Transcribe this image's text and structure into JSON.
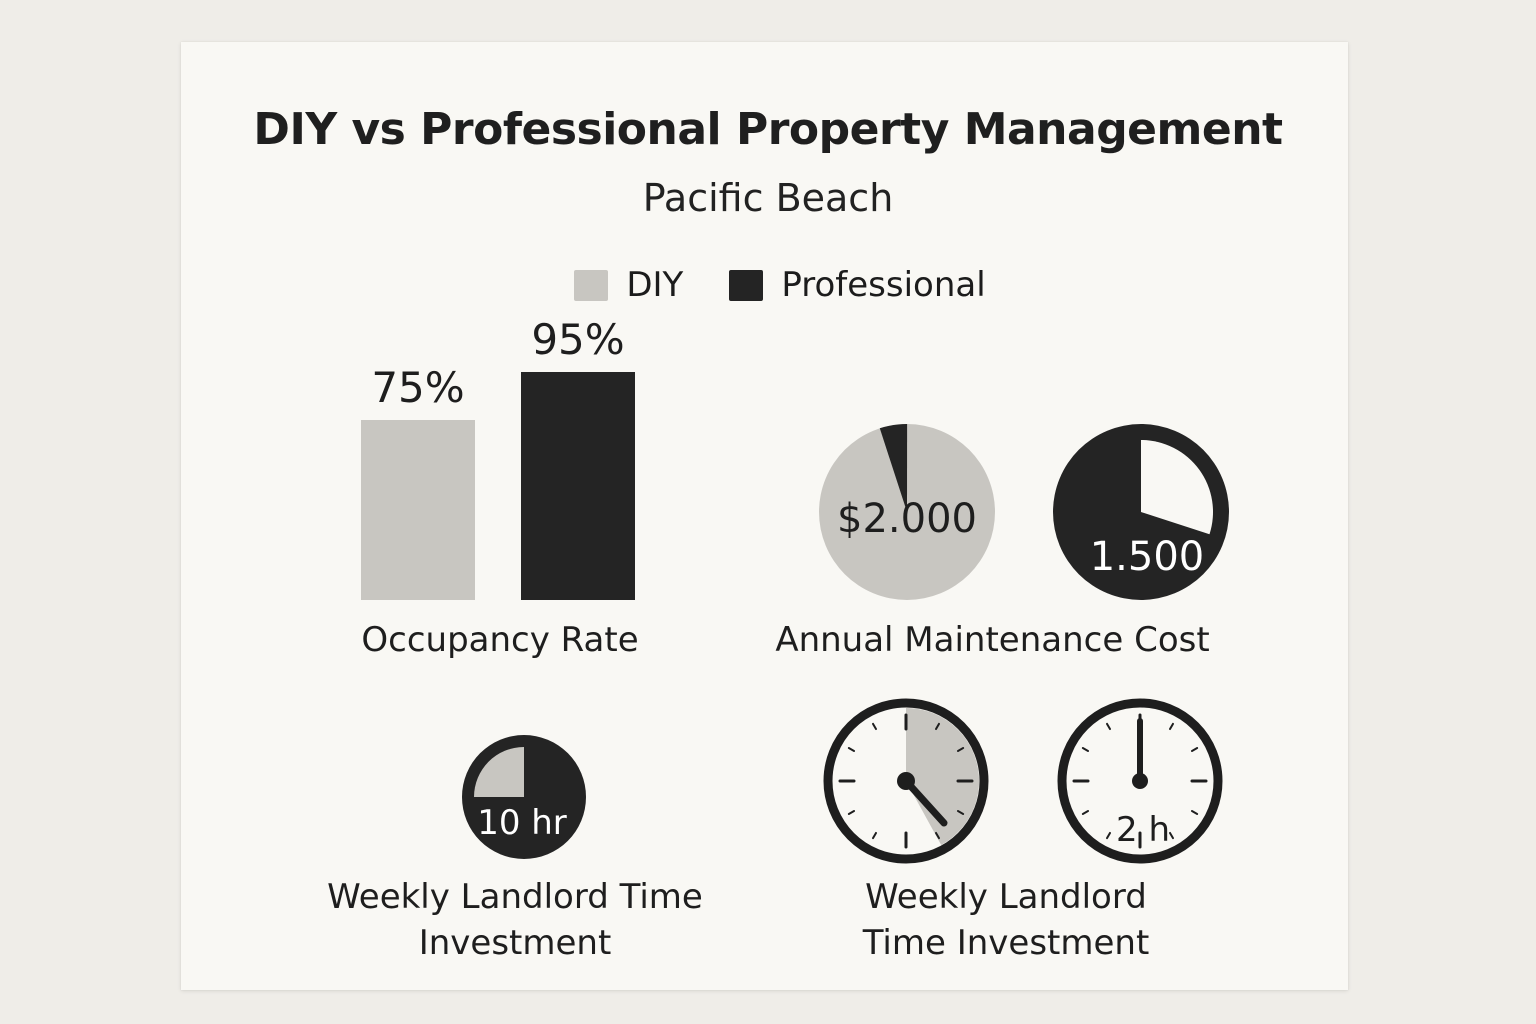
{
  "colors": {
    "diy": "#c8c6c1",
    "professional": "#242424",
    "paper": "#f9f8f4"
  },
  "chart_data": {
    "title": "DIY vs Professional Property Management",
    "subtitle": "Pacific Beach",
    "legend": [
      {
        "name": "DIY",
        "color": "#c8c6c1"
      },
      {
        "name": "Professional",
        "color": "#242424"
      }
    ],
    "panels": [
      {
        "type": "bar",
        "label": "Occupancy Rate",
        "series": [
          {
            "name": "DIY",
            "value": 75,
            "display": "75%"
          },
          {
            "name": "Professional",
            "value": 95,
            "display": "95%"
          }
        ],
        "ylim": [
          0,
          100
        ]
      },
      {
        "type": "pie",
        "label": "Annual Maintenance Cost",
        "series": [
          {
            "name": "DIY",
            "display": "$2.000",
            "filled_fraction": 0.95
          },
          {
            "name": "Professional",
            "display": "1.500",
            "filled_fraction": 0.7
          }
        ]
      },
      {
        "type": "pie",
        "label": "Weekly Landlord Time Investment",
        "series": [
          {
            "name": "DIY",
            "display": "10 hr",
            "filled_fraction": 0.25
          }
        ]
      },
      {
        "type": "clock",
        "label": "Weekly Landlord Time Investment",
        "series": [
          {
            "name": "DIY",
            "display": "",
            "filled_fraction": 0.42
          },
          {
            "name": "Professional",
            "display": "2 h",
            "filled_fraction": 0
          }
        ]
      }
    ]
  }
}
